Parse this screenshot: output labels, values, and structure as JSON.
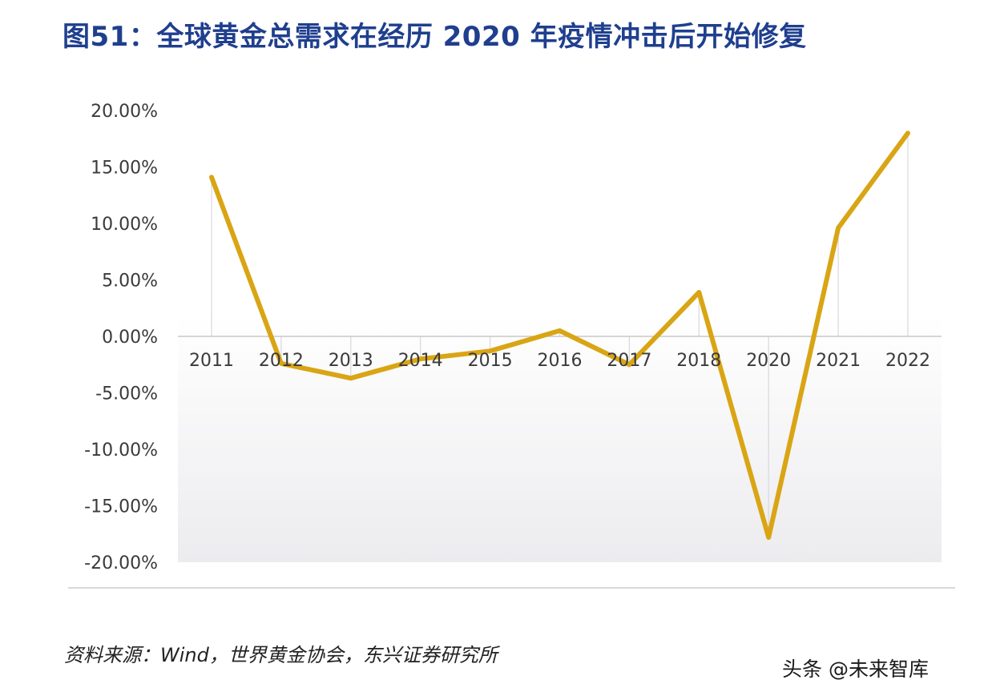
{
  "title": "图51：全球黄金总需求在经历 2020 年疫情冲击后开始修复",
  "source_note": "资料来源：Wind，世界黄金协会，东兴证券研究所",
  "watermark": "头条 @未来智库",
  "colors": {
    "title": "#1f3f8e",
    "line": "#d9a514",
    "axis_text": "#3a3a3a",
    "plot_bg_bottom": "#eeeef0",
    "divider": "#c8cbd4"
  },
  "chart_data": {
    "type": "line",
    "categories": [
      "2011",
      "2012",
      "2013",
      "2014",
      "2015",
      "2016",
      "2017",
      "2018",
      "2020",
      "2021",
      "2022"
    ],
    "series": [
      {
        "values": [
          14.1,
          -2.4,
          -3.7,
          -2.0,
          -1.3,
          0.5,
          -2.5,
          3.9,
          -17.8,
          9.6,
          18.0
        ]
      }
    ],
    "y_ticks": [
      "20.00%",
      "15.00%",
      "10.00%",
      "5.00%",
      "0.00%",
      "-5.00%",
      "-10.00%",
      "-15.00%",
      "-20.00%"
    ],
    "ylim": [
      -20,
      20
    ],
    "ylabel": "",
    "xlabel": "",
    "legend": "none"
  }
}
